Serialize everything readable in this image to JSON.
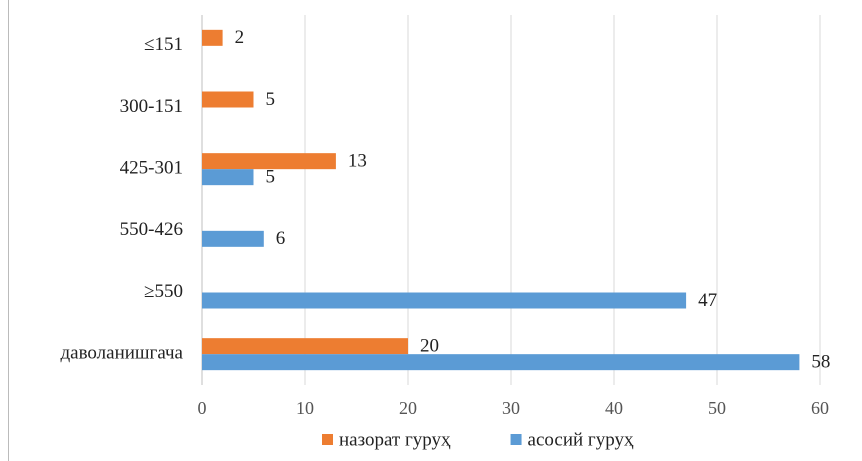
{
  "chart_data": {
    "type": "hbar",
    "categories": [
      "≤151",
      "300-151",
      "425-301",
      "550-426",
      "≥550",
      "даволанишгача"
    ],
    "series": [
      {
        "name": "назорат гуруҳ",
        "color": "#ed7d31",
        "values": [
          2,
          5,
          13,
          null,
          null,
          20
        ]
      },
      {
        "name": "асосий гуруҳ",
        "color": "#5b9bd5",
        "values": [
          null,
          null,
          5,
          6,
          47,
          58
        ]
      }
    ],
    "xlim": [
      0,
      60
    ],
    "xticks": [
      0,
      10,
      20,
      30,
      40,
      50,
      60
    ],
    "grid": true,
    "legend": "bottom"
  }
}
